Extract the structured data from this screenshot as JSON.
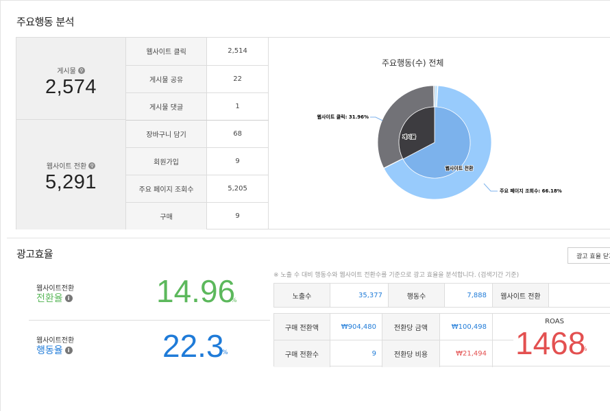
{
  "behavior": {
    "title": "주요행동 분석",
    "posts": {
      "label": "게시물",
      "value": "2,574"
    },
    "web_conv": {
      "label": "웹사이트 전환",
      "value": "5,291"
    },
    "rows": [
      {
        "name": "웹사이트 클릭",
        "value": "2,514"
      },
      {
        "name": "게시물 공유",
        "value": "22"
      },
      {
        "name": "게시물 댓글",
        "value": "1"
      },
      {
        "name": "장바구니 담기",
        "value": "68"
      },
      {
        "name": "회원가입",
        "value": "9"
      },
      {
        "name": "주요 페이지 조회수",
        "value": "5,205"
      },
      {
        "name": "구매",
        "value": "9"
      }
    ]
  },
  "chart_data": {
    "type": "pie",
    "title": "주요행동(수) 전체",
    "inner_ring": [
      {
        "name": "게시물",
        "value": 2574,
        "color": "#3d3c40"
      },
      {
        "name": "웹사이트 전환",
        "value": 5291,
        "color": "#7cb2ec"
      }
    ],
    "outer_ring": [
      {
        "name": "웹사이트 클릭",
        "value": 2514,
        "color": "#727277"
      },
      {
        "name": "게시물 공유",
        "value": 22,
        "color": "#8a8a90"
      },
      {
        "name": "게시물 댓글",
        "value": 1,
        "color": "#9a9aa0"
      },
      {
        "name": "장바구니 담기",
        "value": 68,
        "color": "#c4e4fb"
      },
      {
        "name": "회원가입",
        "value": 9,
        "color": "#d3eafb"
      },
      {
        "name": "주요 페이지 조회수",
        "value": 5205,
        "color": "#98cbfc"
      },
      {
        "name": "구매",
        "value": 9,
        "color": "#b8dcfb"
      }
    ],
    "labels": {
      "left": "웹사이트 클릭: 31.96%",
      "right": "주요 페이지 조회수: 66.18%",
      "inner_left": "게시물",
      "inner_right": "웹사이트 전환"
    }
  },
  "ad": {
    "title": "광고효율",
    "close_button": "광고 효율 닫기",
    "conversion": {
      "sub": "웹사이트전환",
      "main": "전환율",
      "value": "14.96",
      "unit": "%",
      "color": "#5cb85c"
    },
    "action": {
      "sub": "웹사이트전환",
      "main": "행동율",
      "value": "22.3",
      "unit": "%",
      "color": "#1f7bd8"
    },
    "note": "※ 노출 수 대비 행동수와 웹사이트 전환수를 기준으로 광고 효율을 분석합니다. (검색기간 기준)",
    "impressions_label": "노출수",
    "impressions_value": "35,377",
    "actions_label": "행동수",
    "actions_value": "7,888",
    "web_conv_label": "웹사이트 전환",
    "purchase_amount_label": "구매 전환액",
    "purchase_amount_value": "₩904,480",
    "per_conv_amount_label": "전환당 금액",
    "per_conv_amount_value": "₩100,498",
    "purchase_count_label": "구매 전환수",
    "purchase_count_value": "9",
    "per_conv_cost_label": "전환당 비용",
    "per_conv_cost_value": "₩21,494",
    "roas_label": "ROAS",
    "roas_value": "1468",
    "roas_unit": "%"
  }
}
